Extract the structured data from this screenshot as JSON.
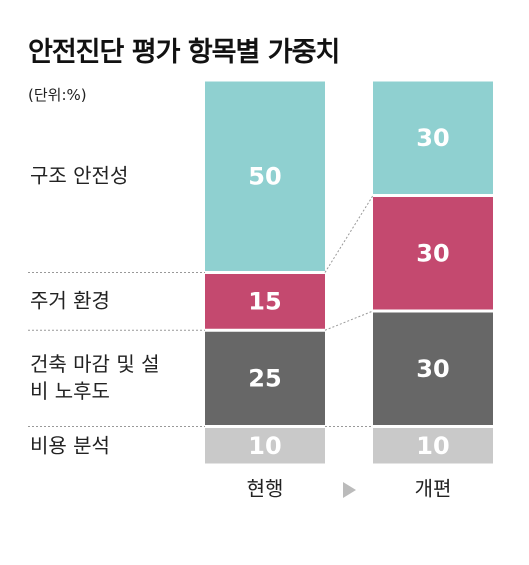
{
  "chart_data": {
    "type": "stacked-bar",
    "title": "안전진단 평가 항목별 가중치",
    "subtitle": "(단위:%)",
    "categories": [
      "현행",
      "개편"
    ],
    "series": [
      {
        "name": "구조 안전성",
        "color": "#8fd0d0",
        "values": [
          50,
          30
        ]
      },
      {
        "name": "주거 환경",
        "color": "#c4496f",
        "values": [
          15,
          30
        ]
      },
      {
        "name": "건축 마감 및 설비 노후도",
        "color": "#676767",
        "values": [
          25,
          30
        ]
      },
      {
        "name": "비용 분석",
        "color": "#c9c9c9",
        "values": [
          10,
          10
        ]
      }
    ]
  }
}
